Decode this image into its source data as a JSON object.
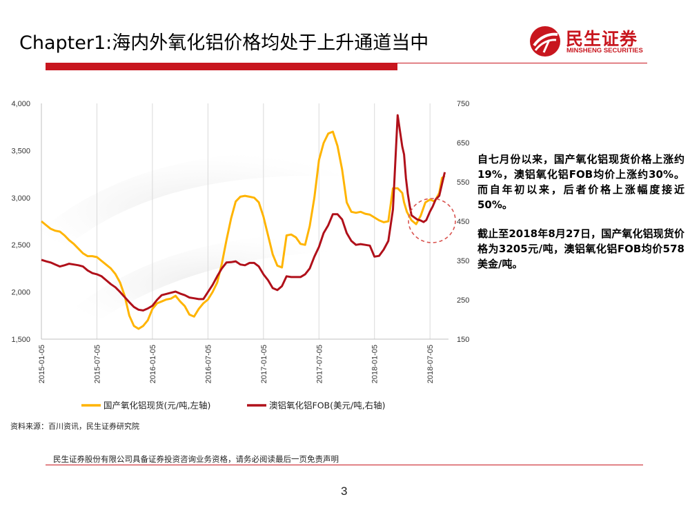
{
  "title": "Chapter1:海内外氧化铝价格均处于上升通道当中",
  "logo": {
    "name_cn": "民生证券",
    "name_en": "MINSHENG SECURITIES"
  },
  "colors": {
    "brand_red": "#c8161e",
    "series_yellow": "#ffb400",
    "series_darkred": "#b0101a",
    "highlight_circle": "#d9534f"
  },
  "commentary": {
    "paragraph1": "自七月份以来，国产氧化铝现货价格上涨约19%，澳铝氧化铝FOB均价上涨约30%。而自年初以来，后者价格上涨幅度接近50%。",
    "paragraph2": "截止至2018年8月27日，国产氧化铝现货价格为3205元/吨，澳铝氧化铝FOB均价578美金/吨。"
  },
  "source": "资料来源：百川资讯，民生证券研究院",
  "disclaimer": "民生证券股份有限公司具备证券投资咨询业务资格，请务必阅读最后一页免责声明",
  "page_number": "3",
  "chart_data": {
    "type": "line",
    "title": "",
    "x_tick_labels": [
      "2015-01-05",
      "2015-07-05",
      "2016-01-05",
      "2016-07-05",
      "2017-01-05",
      "2017-07-05",
      "2018-01-05",
      "2018-07-05"
    ],
    "x_range_months": [
      0,
      44
    ],
    "y_left": {
      "label": "元/吨",
      "range": [
        1500,
        4000
      ],
      "ticks": [
        "1,500",
        "2,000",
        "2,500",
        "3,000",
        "3,500",
        "4,000"
      ]
    },
    "y_right": {
      "label": "美元/吨",
      "range": [
        150,
        750
      ],
      "ticks": [
        "150",
        "250",
        "350",
        "450",
        "550",
        "650",
        "750"
      ]
    },
    "grid": "vertical",
    "legend_position": "bottom",
    "series": [
      {
        "name": "国产氧化铝现货(元/吨,左轴)",
        "axis": "left",
        "x": [
          0,
          0.5,
          1,
          1.5,
          2,
          2.5,
          3,
          3.5,
          4,
          4.5,
          5,
          5.5,
          6,
          6.5,
          7,
          7.5,
          8,
          8.5,
          9,
          9.5,
          10,
          10.5,
          11,
          11.5,
          12,
          12.5,
          13,
          13.5,
          14,
          14.5,
          15,
          15.5,
          16,
          16.5,
          17,
          17.5,
          18,
          18.5,
          19,
          19.5,
          20,
          20.5,
          21,
          21.5,
          22,
          22.5,
          23,
          23.5,
          24,
          24.5,
          25,
          25.5,
          26,
          26.5,
          27,
          27.5,
          28,
          28.5,
          29,
          29.5,
          30,
          30.5,
          31,
          31.5,
          32,
          32.5,
          33,
          33.5,
          34,
          34.5,
          35,
          35.5,
          36,
          36.5,
          37,
          37.5,
          38,
          38.5,
          39,
          39.2,
          39.5,
          40,
          40.5,
          41,
          41.5,
          42,
          42.5,
          43,
          43.3,
          43.6
        ],
        "values": [
          2750,
          2710,
          2670,
          2650,
          2640,
          2600,
          2550,
          2510,
          2460,
          2410,
          2380,
          2380,
          2370,
          2330,
          2290,
          2250,
          2190,
          2100,
          1960,
          1750,
          1640,
          1610,
          1640,
          1700,
          1820,
          1880,
          1900,
          1920,
          1930,
          1960,
          1900,
          1850,
          1760,
          1740,
          1820,
          1880,
          1920,
          2000,
          2100,
          2300,
          2550,
          2780,
          2960,
          3010,
          3020,
          3010,
          3000,
          2950,
          2800,
          2600,
          2400,
          2280,
          2260,
          2600,
          2610,
          2580,
          2510,
          2500,
          2700,
          3000,
          3400,
          3580,
          3680,
          3700,
          3550,
          3300,
          2950,
          2850,
          2840,
          2850,
          2830,
          2820,
          2790,
          2760,
          2740,
          2750,
          3100,
          3100,
          3050,
          2950,
          2850,
          2760,
          2720,
          2810,
          2950,
          2980,
          2960,
          3050,
          3210,
          3230
        ]
      },
      {
        "name": "澳铝氧化铝FOB(美元/吨,右轴)",
        "axis": "right",
        "x": [
          0,
          0.5,
          1,
          1.5,
          2,
          2.5,
          3,
          3.5,
          4,
          4.5,
          5,
          5.5,
          6,
          6.5,
          7,
          7.5,
          8,
          8.5,
          9,
          9.5,
          10,
          10.5,
          11,
          11.5,
          12,
          12.5,
          13,
          13.5,
          14,
          14.5,
          15,
          15.5,
          16,
          16.5,
          17,
          17.5,
          18,
          18.5,
          19,
          19.5,
          20,
          20.5,
          21,
          21.5,
          22,
          22.5,
          23,
          23.5,
          24,
          24.5,
          25,
          25.5,
          26,
          26.5,
          27,
          27.5,
          28,
          28.5,
          29,
          29.5,
          30,
          30.5,
          31,
          31.5,
          32,
          32.5,
          33,
          33.5,
          34,
          34.5,
          35,
          35.5,
          36,
          36.5,
          37,
          37.5,
          38,
          38.5,
          39,
          39.2,
          39.4,
          39.6,
          39.8,
          40,
          40.3,
          40.6,
          41,
          41.3,
          41.6,
          42,
          42.3,
          42.6,
          43,
          43.3,
          43.6
        ],
        "values": [
          352,
          348,
          345,
          340,
          335,
          338,
          342,
          340,
          338,
          335,
          325,
          318,
          315,
          310,
          300,
          290,
          282,
          270,
          257,
          244,
          232,
          225,
          223,
          228,
          235,
          250,
          262,
          265,
          268,
          271,
          266,
          262,
          256,
          254,
          252,
          252,
          270,
          288,
          310,
          330,
          345,
          346,
          348,
          340,
          338,
          344,
          344,
          335,
          315,
          300,
          280,
          275,
          285,
          310,
          308,
          308,
          308,
          315,
          330,
          360,
          385,
          420,
          440,
          468,
          468,
          455,
          420,
          400,
          390,
          392,
          390,
          388,
          360,
          362,
          378,
          400,
          480,
          720,
          640,
          620,
          560,
          520,
          490,
          465,
          460,
          455,
          452,
          448,
          453,
          475,
          488,
          505,
          515,
          545,
          575
        ]
      }
    ]
  }
}
